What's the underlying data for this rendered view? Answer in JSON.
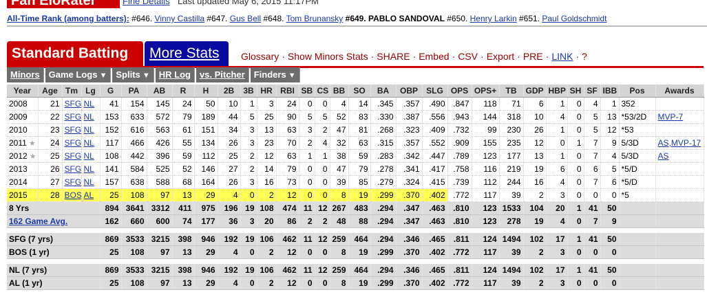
{
  "header": {
    "site": "Fan EloRater",
    "link": "Fine Details",
    "updated": "Last updated May 6, 2015 11:17PM"
  },
  "rank": {
    "label": "All-Time Rank (among batters):",
    "entries": [
      {
        "rank": "#646.",
        "name": "Vinny Castilla"
      },
      {
        "rank": "#647.",
        "name": "Gus Bell"
      },
      {
        "rank": "#648.",
        "name": "Tom Brunansky"
      },
      {
        "rank": "#649.",
        "name": "PABLO SANDOVAL",
        "current": true
      },
      {
        "rank": "#650.",
        "name": "Henry Larkin"
      },
      {
        "rank": "#651.",
        "name": "Paul Goldschmidt"
      }
    ]
  },
  "tabs": [
    {
      "label": "Standard Batting",
      "active": true
    },
    {
      "label": "More Stats",
      "active": false
    }
  ],
  "links": [
    "Glossary",
    "Show Minors Stats",
    "SHARE",
    "Embed",
    "CSV",
    "Export",
    "PRE",
    "LINK",
    "?"
  ],
  "subnav": [
    {
      "label": "Minors",
      "menu": false
    },
    {
      "label": "Game Logs",
      "menu": true
    },
    {
      "label": "Splits",
      "menu": true
    },
    {
      "label": "HR Log",
      "menu": false
    },
    {
      "label": "vs. Pitcher",
      "menu": false
    },
    {
      "label": "Finders",
      "menu": true
    }
  ],
  "table": {
    "headers": [
      "Year",
      "Age",
      "Tm",
      "Lg",
      "G",
      "PA",
      "AB",
      "R",
      "H",
      "2B",
      "3B",
      "HR",
      "RBI",
      "SB",
      "CS",
      "BB",
      "SO",
      "BA",
      "OBP",
      "SLG",
      "OPS",
      "OPS+",
      "TB",
      "GDP",
      "HBP",
      "SH",
      "SF",
      "IBB",
      "Pos",
      "Awards"
    ],
    "rows": [
      {
        "cells": [
          "2008",
          "21",
          "SFG",
          "NL",
          "41",
          "154",
          "145",
          "24",
          "50",
          "10",
          "1",
          "3",
          "24",
          "0",
          "0",
          "4",
          "14",
          ".345",
          ".357",
          ".490",
          ".847",
          "118",
          "71",
          "6",
          "1",
          "0",
          "4",
          "1",
          "352",
          null
        ]
      },
      {
        "cells": [
          "2009",
          "22",
          "SFG",
          "NL",
          "153",
          "633",
          "572",
          "79",
          "189",
          "44",
          "5",
          "25",
          "90",
          "5",
          "5",
          "52",
          "83",
          ".330",
          ".387",
          ".556",
          ".943",
          "144",
          "318",
          "10",
          "4",
          "0",
          "5",
          "13",
          "*53/2D",
          "MVP-7"
        ]
      },
      {
        "cells": [
          "2010",
          "23",
          "SFG",
          "NL",
          "152",
          "616",
          "563",
          "61",
          "151",
          "34",
          "3",
          "13",
          "63",
          "3",
          "2",
          "47",
          "81",
          ".268",
          ".323",
          ".409",
          ".732",
          "99",
          "230",
          "26",
          "1",
          "0",
          "5",
          "12",
          "*53",
          null
        ]
      },
      {
        "cells": [
          "2011",
          "24",
          "SFG",
          "NL",
          "117",
          "466",
          "426",
          "55",
          "134",
          "26",
          "3",
          "23",
          "70",
          "2",
          "4",
          "32",
          "63",
          ".315",
          ".357",
          ".552",
          ".909",
          "155",
          "235",
          "12",
          "0",
          "1",
          "7",
          "9",
          "5/3D",
          "AS,MVP-17"
        ],
        "all_star": true
      },
      {
        "cells": [
          "2012",
          "25",
          "SFG",
          "NL",
          "108",
          "442",
          "396",
          "59",
          "112",
          "25",
          "2",
          "12",
          "63",
          "1",
          "1",
          "38",
          "59",
          ".283",
          ".342",
          ".447",
          ".789",
          "123",
          "177",
          "13",
          "1",
          "0",
          "7",
          "4",
          "5/3D",
          "AS"
        ],
        "all_star": true
      },
      {
        "cells": [
          "2013",
          "26",
          "SFG",
          "NL",
          "141",
          "584",
          "525",
          "52",
          "146",
          "27",
          "2",
          "14",
          "79",
          "0",
          "0",
          "47",
          "79",
          ".278",
          ".341",
          ".417",
          ".758",
          "116",
          "219",
          "19",
          "6",
          "0",
          "6",
          "5",
          "*5/D",
          null
        ]
      },
      {
        "cells": [
          "2014",
          "27",
          "SFG",
          "NL",
          "157",
          "638",
          "588",
          "68",
          "164",
          "26",
          "3",
          "16",
          "73",
          "0",
          "0",
          "39",
          "85",
          ".279",
          ".324",
          ".415",
          ".739",
          "112",
          "244",
          "16",
          "4",
          "0",
          "7",
          "6",
          "*5/D",
          null
        ]
      },
      {
        "cells": [
          "2015",
          "28",
          "BOS",
          "AL",
          "25",
          "108",
          "97",
          "13",
          "29",
          "4",
          "0",
          "2",
          "12",
          "0",
          "0",
          "8",
          "19",
          ".299",
          ".370",
          ".402",
          ".772",
          "117",
          "39",
          "2",
          "3",
          "0",
          "0",
          "0",
          "*5",
          null
        ],
        "highlighted": true
      }
    ],
    "totals": [
      {
        "label": "8 Yrs",
        "cells": [
          "894",
          "3641",
          "3312",
          "411",
          "975",
          "196",
          "19",
          "108",
          "474",
          "11",
          "12",
          "267",
          "483",
          ".294",
          ".347",
          ".463",
          ".810",
          "123",
          "1533",
          "104",
          "20",
          "1",
          "41",
          "50"
        ]
      },
      {
        "label": "162 Game Avg.",
        "link": true,
        "cells": [
          "162",
          "660",
          "600",
          "74",
          "177",
          "36",
          "3",
          "20",
          "86",
          "2",
          "2",
          "48",
          "88",
          ".294",
          ".347",
          ".463",
          ".810",
          "123",
          "278",
          "19",
          "4",
          "0",
          "7",
          "9"
        ]
      },
      {
        "label": "SFG (7 yrs)",
        "spacer_before": true,
        "cells": [
          "869",
          "3533",
          "3215",
          "398",
          "946",
          "192",
          "19",
          "106",
          "462",
          "11",
          "12",
          "259",
          "464",
          ".294",
          ".346",
          ".465",
          ".811",
          "124",
          "1494",
          "102",
          "17",
          "1",
          "41",
          "50"
        ]
      },
      {
        "label": "BOS (1 yr)",
        "cells": [
          "25",
          "108",
          "97",
          "13",
          "29",
          "4",
          "0",
          "2",
          "12",
          "0",
          "0",
          "8",
          "19",
          ".299",
          ".370",
          ".402",
          ".772",
          "117",
          "39",
          "2",
          "3",
          "0",
          "0",
          "0"
        ]
      },
      {
        "label": "NL (7 yrs)",
        "spacer_before": true,
        "cells": [
          "869",
          "3533",
          "3215",
          "398",
          "946",
          "192",
          "19",
          "106",
          "462",
          "11",
          "12",
          "259",
          "464",
          ".294",
          ".346",
          ".465",
          ".811",
          "124",
          "1494",
          "102",
          "17",
          "1",
          "41",
          "50"
        ]
      },
      {
        "label": "AL (1 yr)",
        "cells": [
          "25",
          "108",
          "97",
          "13",
          "29",
          "4",
          "0",
          "2",
          "12",
          "0",
          "0",
          "8",
          "19",
          ".299",
          ".370",
          ".402",
          ".772",
          "117",
          "39",
          "2",
          "3",
          "0",
          "0",
          "0"
        ]
      }
    ]
  }
}
